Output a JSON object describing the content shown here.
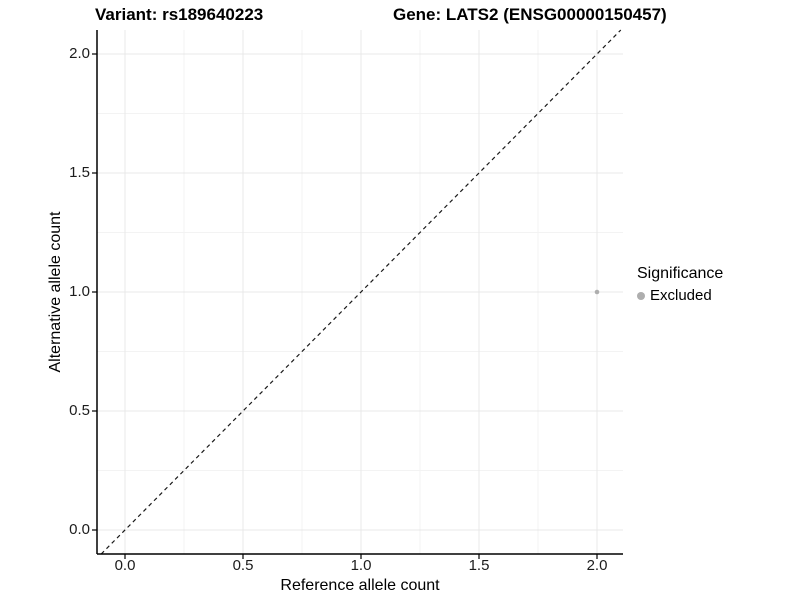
{
  "titles": {
    "variant": "Variant: rs189640223",
    "gene": "Gene: LATS2 (ENSG00000150457)"
  },
  "chart_data": {
    "type": "scatter",
    "title": "Variant: rs189640223   Gene: LATS2 (ENSG00000150457)",
    "xlabel": "Reference allele count",
    "ylabel": "Alternative allele count",
    "xlim": [
      -0.12,
      2.11
    ],
    "ylim": [
      -0.1,
      2.1
    ],
    "xticks": [
      0.0,
      0.5,
      1.0,
      1.5,
      2.0
    ],
    "xtick_labels": [
      "0.0",
      "0.5",
      "1.0",
      "1.5",
      "2.0"
    ],
    "yticks": [
      0.0,
      0.5,
      1.0,
      1.5,
      2.0
    ],
    "ytick_labels": [
      "0.0",
      "0.5",
      "1.0",
      "1.5",
      "2.0"
    ],
    "xticks_minor": [
      0.25,
      0.75,
      1.25,
      1.75
    ],
    "yticks_minor": [
      0.25,
      0.75,
      1.25,
      1.75
    ],
    "grid": "major+minor",
    "series": [
      {
        "name": "Excluded",
        "color": "#aeaeae",
        "points": [
          {
            "x": 2.0,
            "y": 1.0
          }
        ]
      }
    ],
    "reference_line": {
      "kind": "abline",
      "slope": 1,
      "intercept": 0,
      "style": "dashed",
      "color": "#1a1a1a"
    },
    "legend": {
      "title": "Significance",
      "position": "right",
      "entries": [
        {
          "label": "Excluded",
          "color": "#aeaeae"
        }
      ]
    },
    "colors": {
      "axis_line": "#000000",
      "tick_mark": "#000000",
      "grid_major": "#e8e8e8",
      "grid_minor": "#f3f3f3",
      "background": "#ffffff"
    }
  }
}
